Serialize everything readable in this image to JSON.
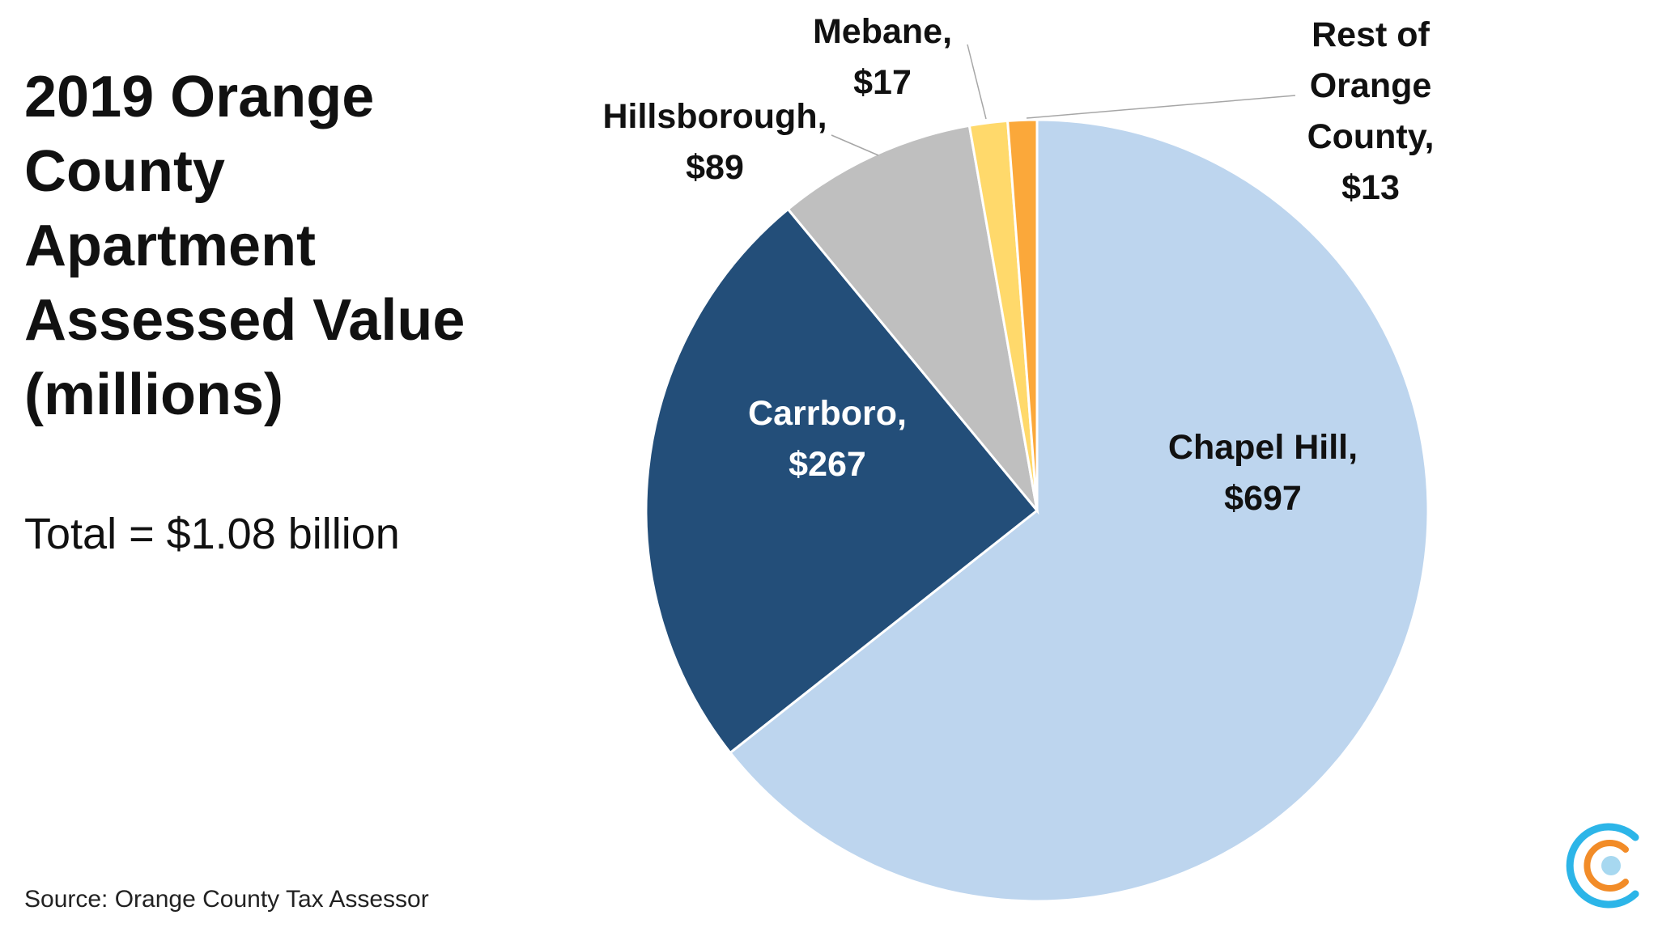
{
  "slide": {
    "title_lines": [
      "2019 Orange",
      "County",
      "Apartment",
      "Assessed Value",
      "(millions)"
    ],
    "total": "Total = $1.08 billion",
    "source": "Source: Orange County Tax Assessor"
  },
  "chart_data": {
    "type": "pie",
    "title": "2019 Orange County Apartment Assessed Value (millions)",
    "unit": "millions",
    "start_angle_deg": 0,
    "direction": "clockwise",
    "slices": [
      {
        "name": "Chapel Hill",
        "value": 697,
        "label_lines": [
          "Chapel Hill,",
          "$697"
        ],
        "color": "#BDD5EE",
        "label_color": "#111111"
      },
      {
        "name": "Carrboro",
        "value": 267,
        "label_lines": [
          "Carrboro,",
          "$267"
        ],
        "color": "#234E79",
        "label_color": "#FFFFFF"
      },
      {
        "name": "Hillsborough",
        "value": 89,
        "label_lines": [
          "Hillsborough,",
          "$89"
        ],
        "color": "#BFBFBF",
        "label_color": "#111111"
      },
      {
        "name": "Mebane",
        "value": 17,
        "label_lines": [
          "Mebane,",
          "$17"
        ],
        "color": "#FFD96B",
        "label_color": "#111111"
      },
      {
        "name": "Rest of Orange County",
        "value": 13,
        "label_lines": [
          "Rest of",
          "Orange",
          "County,",
          "$13"
        ],
        "color": "#FBA83A",
        "label_color": "#111111"
      }
    ],
    "legend": "none",
    "data_labels": "category and value"
  },
  "logo": {
    "icon": "concentric-c-logo",
    "colors": [
      "#2CB5E8",
      "#F28C28",
      "#A7D8F0"
    ]
  }
}
